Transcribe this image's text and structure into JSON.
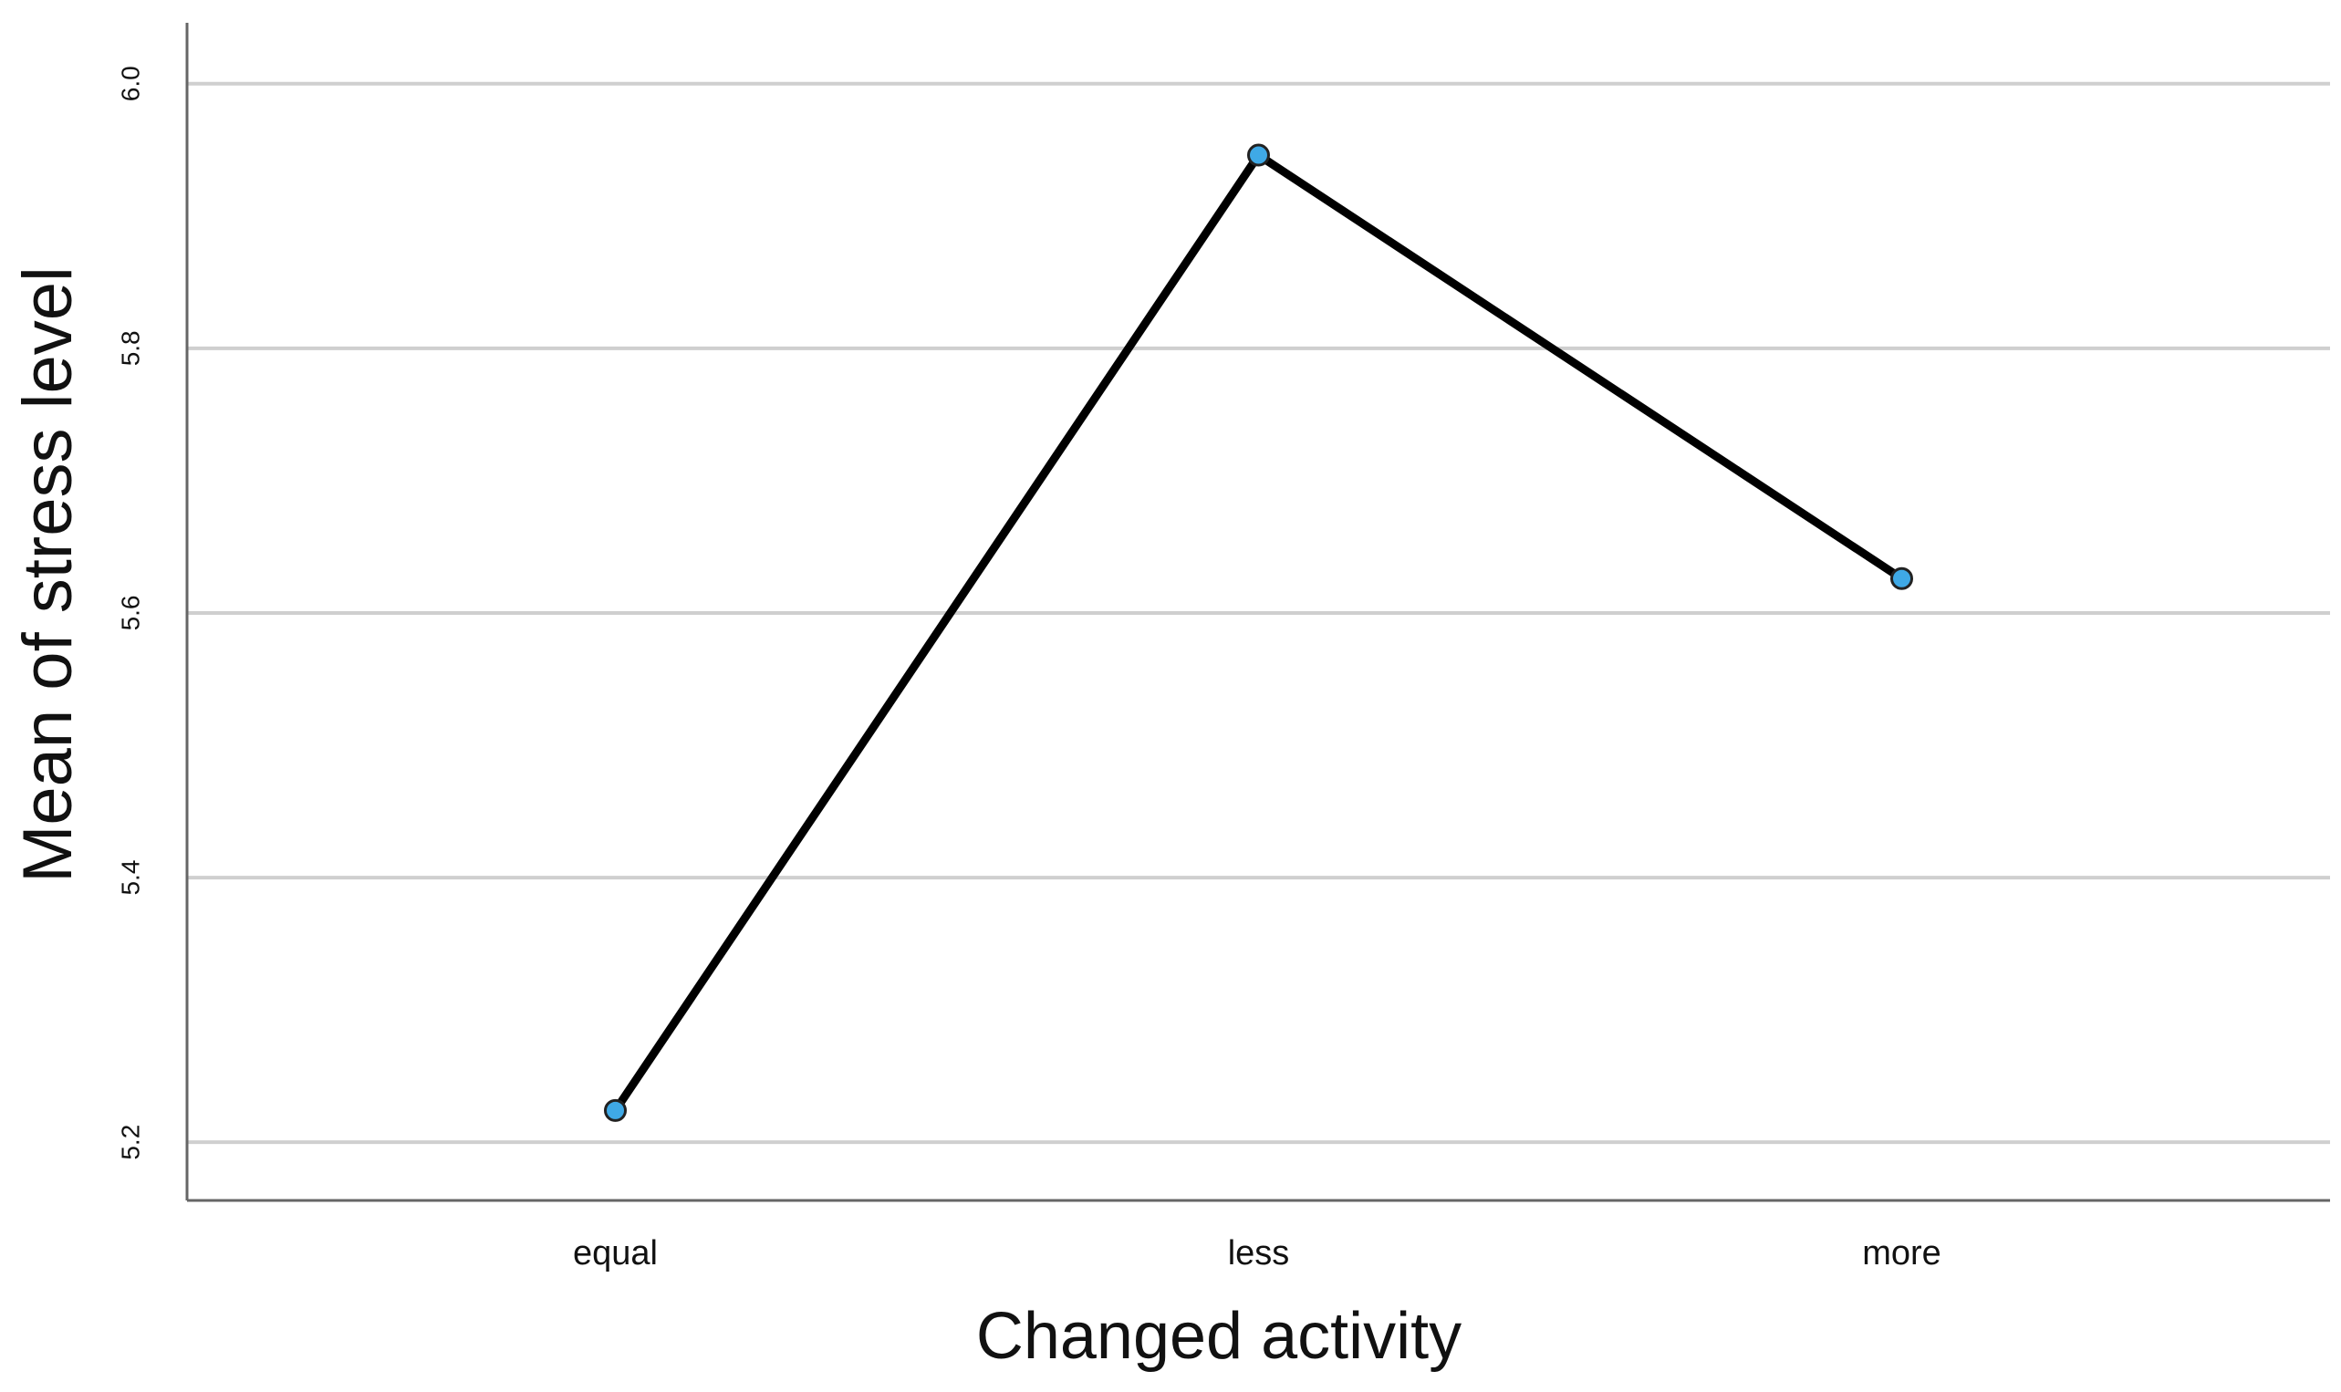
{
  "chart_data": {
    "type": "line",
    "x_label": "Changed activity",
    "y_label": "Mean of stress level",
    "categories": [
      "equal",
      "less",
      "more"
    ],
    "values": [
      5.224,
      5.946,
      5.626
    ],
    "color": "#000000",
    "marker_color": "#3fa9e6",
    "ylim": [
      5.156,
      6.046
    ],
    "yticks": [
      {
        "value": 5.2,
        "label": "5.2"
      },
      {
        "value": 5.4,
        "label": "5.4"
      },
      {
        "value": 5.6,
        "label": "5.6"
      },
      {
        "value": 5.8,
        "label": "5.8"
      },
      {
        "value": 6.0,
        "label": "6.0"
      }
    ],
    "grid": true
  }
}
